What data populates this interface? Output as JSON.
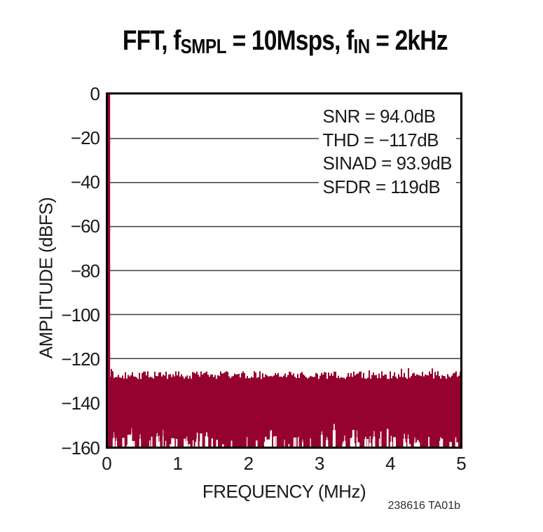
{
  "header": {
    "p1": "FFT, f",
    "s1": "SMPL",
    "p2": " = 10Msps, f",
    "s2": "IN",
    "p3": " = 2kHz"
  },
  "caption": "238616 TA01b",
  "colors": {
    "trace": "#960230",
    "grid": "#3d3d3d",
    "axis": "#000000",
    "text": "#1a1a1a",
    "background": "#ffffff"
  },
  "chart_data": {
    "type": "area",
    "title": "FFT, fSMPL = 10Msps, fIN = 2kHz",
    "xlabel": "FREQUENCY (MHz)",
    "ylabel": "AMPLITUDE (dBFS)",
    "xlim": [
      0,
      5
    ],
    "ylim": [
      -160,
      0
    ],
    "x_ticks": [
      0,
      1,
      2,
      3,
      4,
      5
    ],
    "y_ticks": [
      0,
      -20,
      -40,
      -60,
      -80,
      -100,
      -120,
      -140,
      -160
    ],
    "x_tick_labels": [
      "0",
      "1",
      "2",
      "3",
      "4",
      "5"
    ],
    "y_tick_labels": [
      "0",
      "−20",
      "−40",
      "−60",
      "−80",
      "−100",
      "−120",
      "−140",
      "−160"
    ],
    "grid": true,
    "legend": false,
    "series": [
      {
        "name": "fundamental-tone",
        "kind": "spike",
        "x_mhz": 0.002,
        "peak_dbfs": 0,
        "base_dbfs": -160
      },
      {
        "name": "noise-floor",
        "kind": "noise-band",
        "x_range_mhz": [
          0,
          5
        ],
        "top_mean_dbfs": -127.5,
        "top_jitter_db": 1.8,
        "bottom_dbfs": -160,
        "valley_max_dbfs": -148
      }
    ],
    "annotations": {
      "lines": [
        "SNR = 94.0dB",
        "THD = −117dB",
        "SINAD = 93.9dB",
        "SFDR = 119dB"
      ]
    }
  }
}
